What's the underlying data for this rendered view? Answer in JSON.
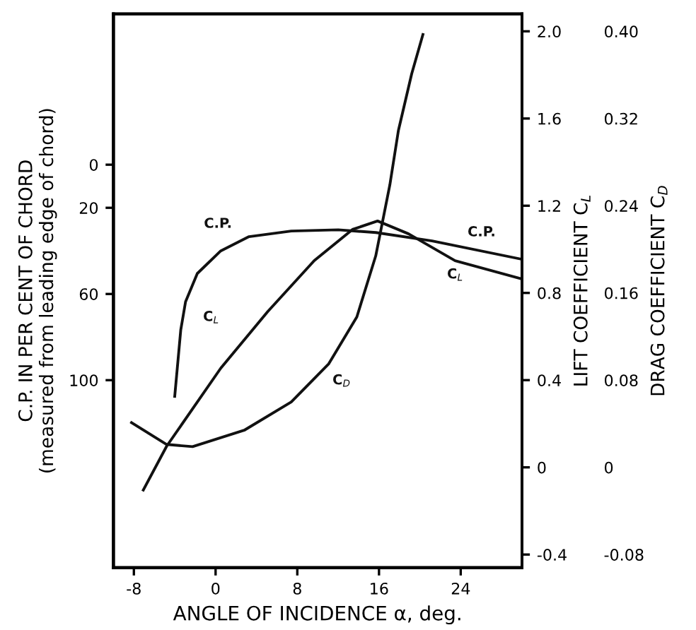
{
  "chart_data": {
    "type": "line",
    "xlabel": "ANGLE OF INCIDENCE α, deg.",
    "ylabel": "C.P. IN PER CENT OF CHORD\n(measured from leading edge of chord)",
    "y2label": "LIFT COEFFICIENT C$_{L}$",
    "y3label": "DRAG COEFFICIENT C$_{D}$",
    "xlim": [
      -10,
      30
    ],
    "xticks": [
      -8,
      0,
      8,
      16,
      24
    ],
    "ylim": [
      187,
      -70
    ],
    "yticks": [
      0,
      20,
      60,
      100
    ],
    "y2lim": [
      -0.46,
      2.08
    ],
    "y2ticks": [
      {
        "value": -0.4,
        "label": "-0.4"
      },
      0,
      {
        "value": 0.4,
        "label": "0.4"
      },
      {
        "value": 0.8,
        "label": "0.8"
      },
      {
        "value": 1.2,
        "label": "1.2"
      },
      {
        "value": 1.6,
        "label": "1.6"
      },
      {
        "value": 2.0,
        "label": "2.0"
      }
    ],
    "y3lim": [
      -0.092,
      0.416
    ],
    "y3ticks": [
      {
        "value": -0.08,
        "label": "-0.08"
      },
      0,
      {
        "value": 0.08,
        "label": "0.08"
      },
      {
        "value": 0.16,
        "label": "0.16"
      },
      {
        "value": 0.24,
        "label": "0.24"
      },
      {
        "value": 0.32,
        "label": "0.32"
      },
      {
        "value": 0.4,
        "label": "0.40"
      }
    ],
    "grid": false,
    "legend": false,
    "marker": "none",
    "line_style": "solid",
    "series": [
      {
        "name": "C.P.",
        "color": "#111111",
        "axis": "y",
        "x": [
          -4.0,
          -3.41,
          -2.94,
          -1.79,
          0.51,
          3.27,
          7.41,
          12.0,
          15.7,
          21.2,
          30
        ],
        "values": [
          107.5,
          76.7,
          63.6,
          50.5,
          40.0,
          33.4,
          30.8,
          30.2,
          31.5,
          35.4,
          43.9
        ]
      },
      {
        "name": "C$_{L}$",
        "color": "#111111",
        "axis": "y2",
        "x": [
          -7.08,
          -4.79,
          0.51,
          5.1,
          9.66,
          13.4,
          15.86,
          18.9,
          23.45,
          30
        ],
        "values": [
          -0.104,
          0.097,
          0.455,
          0.714,
          0.948,
          1.091,
          1.13,
          1.071,
          0.948,
          0.864
        ]
      },
      {
        "name": "C$_{D}$",
        "color": "#111111",
        "axis": "y3",
        "x": [
          -8.23,
          -4.79,
          -2.25,
          2.8,
          7.41,
          11.08,
          13.83,
          15.68,
          17.06,
          17.9,
          19.2,
          20.3
        ],
        "values": [
          0.041,
          0.021,
          0.019,
          0.034,
          0.06,
          0.095,
          0.138,
          0.194,
          0.259,
          0.309,
          0.361,
          0.397
        ]
      }
    ]
  }
}
